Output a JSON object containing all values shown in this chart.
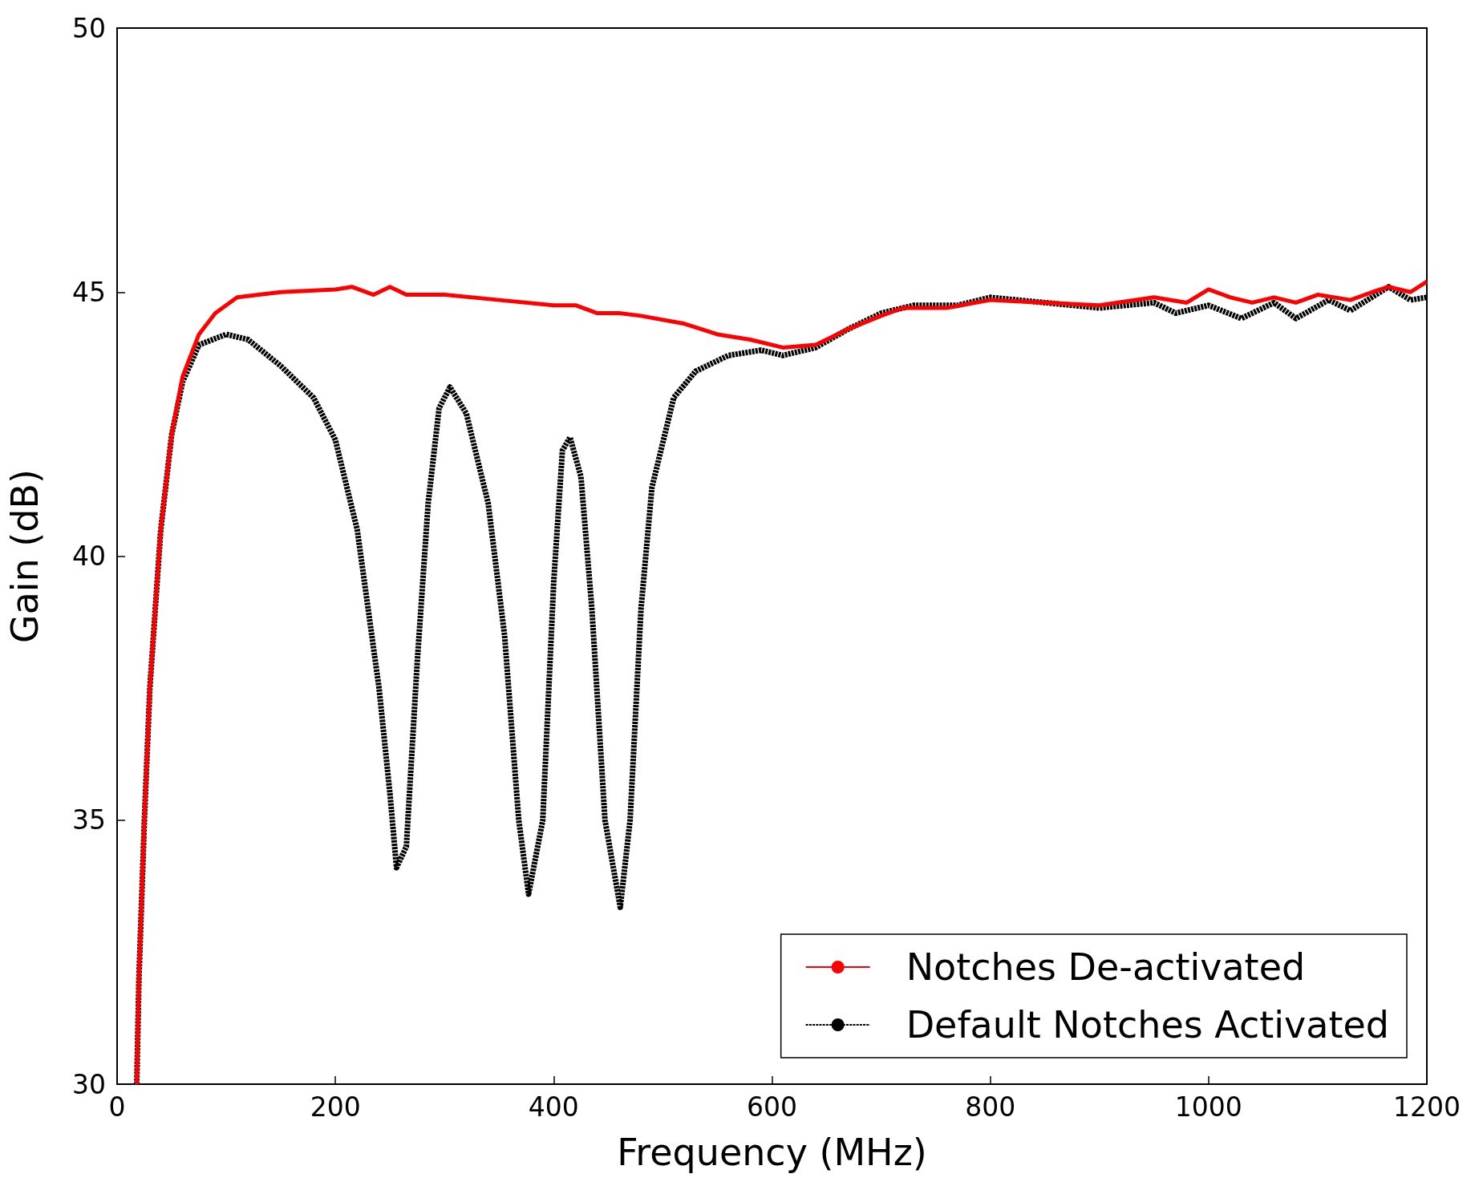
{
  "chart_data": {
    "type": "line",
    "xlabel": "Frequency (MHz)",
    "ylabel": "Gain (dB)",
    "xlim": [
      0,
      1200
    ],
    "xticks": [
      0,
      200,
      400,
      600,
      800,
      1000,
      1200
    ],
    "ylim": [
      30,
      50
    ],
    "yticks": [
      30,
      35,
      40,
      45,
      50
    ],
    "grid": false,
    "legend": "bottom right",
    "marker": "none",
    "series": [
      {
        "name": "Notches De-activated",
        "color": "#ff0000",
        "line_style": "solid",
        "x": [
          18,
          20,
          25,
          30,
          40,
          50,
          60,
          75,
          90,
          110,
          150,
          200,
          215,
          235,
          250,
          265,
          300,
          350,
          400,
          420,
          440,
          460,
          480,
          520,
          550,
          580,
          610,
          640,
          670,
          700,
          720,
          760,
          800,
          850,
          900,
          950,
          980,
          1000,
          1020,
          1040,
          1060,
          1080,
          1100,
          1130,
          1150,
          1165,
          1185,
          1200
        ],
        "values": [
          30,
          32,
          35,
          37.5,
          40.5,
          42.3,
          43.4,
          44.2,
          44.6,
          44.9,
          45.0,
          45.05,
          45.1,
          44.95,
          45.1,
          44.95,
          44.95,
          44.85,
          44.75,
          44.75,
          44.6,
          44.6,
          44.55,
          44.4,
          44.2,
          44.1,
          43.95,
          44.0,
          44.3,
          44.55,
          44.7,
          44.7,
          44.85,
          44.8,
          44.75,
          44.9,
          44.8,
          45.05,
          44.9,
          44.8,
          44.9,
          44.8,
          44.95,
          44.85,
          45.0,
          45.1,
          45.0,
          45.2
        ]
      },
      {
        "name": "Default Notches Activated",
        "color": "#000000",
        "line_style": "dashed",
        "x": [
          18,
          20,
          25,
          30,
          40,
          50,
          60,
          75,
          100,
          120,
          150,
          180,
          200,
          220,
          240,
          250,
          256,
          265,
          275,
          285,
          295,
          305,
          320,
          340,
          355,
          368,
          377,
          390,
          400,
          408,
          415,
          425,
          435,
          447,
          461,
          470,
          480,
          490,
          510,
          530,
          560,
          590,
          610,
          640,
          670,
          700,
          730,
          770,
          800,
          850,
          900,
          950,
          970,
          1000,
          1030,
          1060,
          1080,
          1110,
          1130,
          1165,
          1185,
          1200
        ],
        "values": [
          30,
          32,
          35,
          37.5,
          40.5,
          42.3,
          43.3,
          44.0,
          44.2,
          44.1,
          43.6,
          43.0,
          42.2,
          40.5,
          37.5,
          35.5,
          34.1,
          34.5,
          38,
          41,
          42.8,
          43.2,
          42.7,
          41,
          38.5,
          35,
          33.6,
          35,
          39.5,
          42,
          42.25,
          41.5,
          39,
          35,
          33.35,
          35,
          39,
          41.3,
          43,
          43.5,
          43.8,
          43.9,
          43.8,
          43.95,
          44.3,
          44.6,
          44.75,
          44.75,
          44.9,
          44.8,
          44.7,
          44.8,
          44.6,
          44.75,
          44.5,
          44.8,
          44.5,
          44.85,
          44.65,
          45.1,
          44.85,
          44.9
        ]
      }
    ]
  }
}
